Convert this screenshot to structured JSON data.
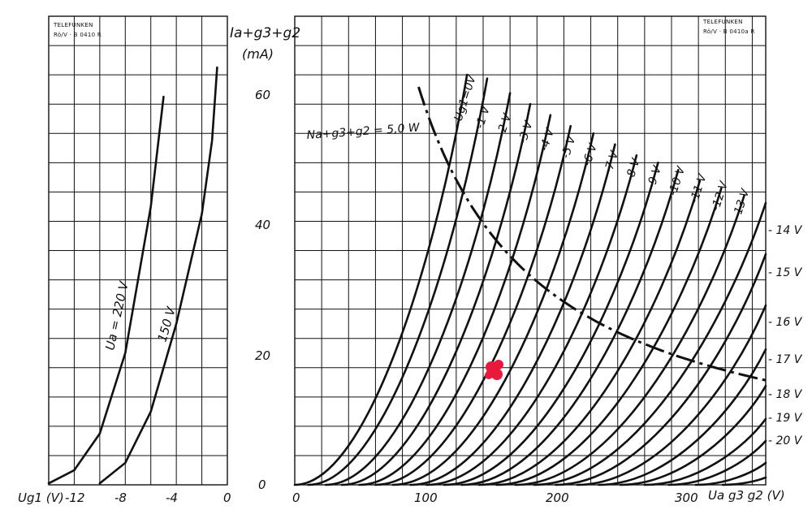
{
  "chart_data": [
    {
      "type": "line",
      "header": [
        "TELEFUNKEN",
        "Rö/V · B 0410 R"
      ],
      "xlabel": "Ug1 (V)",
      "ylabel": "",
      "xlim": [
        -14,
        0
      ],
      "ylim": [
        0,
        64
      ],
      "xticks": [
        "-12",
        "-8",
        "-4",
        "0"
      ],
      "series": [
        {
          "name": "Ua = 220 V",
          "x": [
            -14,
            -12,
            -10,
            -8,
            -7,
            -6,
            -5
          ],
          "y": [
            0.2,
            2,
            7,
            18,
            28,
            38,
            53
          ]
        },
        {
          "name": "150 V",
          "x": [
            -10,
            -8,
            -6,
            -4,
            -2,
            -1.2,
            -0.8
          ],
          "y": [
            0.2,
            3,
            10,
            22,
            37,
            47,
            57
          ]
        }
      ]
    },
    {
      "type": "line",
      "header": [
        "TELEFUNKEN",
        "Rö/V · B 0410a R"
      ],
      "xlabel": "Ua g3 g2 (V)",
      "ylabel": [
        "Ia+g3+g2",
        "(mA)"
      ],
      "xlim": [
        0,
        350
      ],
      "ylim": [
        0,
        64
      ],
      "xticks": [
        "0",
        "100",
        "200",
        "300"
      ],
      "yticks": [
        "0",
        "20",
        "40",
        "60"
      ],
      "power_hyperbola": {
        "label": "Na+g3+g2 = 5,0 W",
        "watts": 5.0
      },
      "top_labels": [
        "Ug1=0V",
        "-1 V",
        "-2 V",
        "-3 V",
        "-4 V",
        "-5 V",
        "-6 V",
        "-7 V",
        "-8 V",
        "-9 V",
        "-10 V",
        "-11 V",
        "-12 V",
        "-13 V"
      ],
      "side_labels": [
        "- 14 V",
        "- 15 V",
        "- 16 V",
        "- 17 V",
        "- 18 V",
        "- 19 V",
        "- 20 V"
      ],
      "series": [
        {
          "ug1": 0,
          "x": [
            0,
            128
          ],
          "y": [
            0,
            56
          ]
        },
        {
          "ug1": -1,
          "x": [
            10,
            143
          ],
          "y": [
            0,
            55.5
          ]
        },
        {
          "ug1": -2,
          "x": [
            23,
            160
          ],
          "y": [
            0,
            53.5
          ]
        },
        {
          "ug1": -3,
          "x": [
            35,
            175
          ],
          "y": [
            0,
            52
          ]
        },
        {
          "ug1": -4,
          "x": [
            48,
            190
          ],
          "y": [
            0,
            50.5
          ]
        },
        {
          "ug1": -5,
          "x": [
            60,
            205
          ],
          "y": [
            0,
            49
          ]
        },
        {
          "ug1": -6,
          "x": [
            73,
            222
          ],
          "y": [
            0,
            48
          ]
        },
        {
          "ug1": -7,
          "x": [
            86,
            238
          ],
          "y": [
            0,
            46.5
          ]
        },
        {
          "ug1": -8,
          "x": [
            98,
            254
          ],
          "y": [
            0,
            45
          ]
        },
        {
          "ug1": -9,
          "x": [
            111,
            270
          ],
          "y": [
            0,
            44
          ]
        },
        {
          "ug1": -10,
          "x": [
            124,
            285
          ],
          "y": [
            0,
            43
          ]
        },
        {
          "ug1": -11,
          "x": [
            137,
            301
          ],
          "y": [
            0,
            41.5
          ]
        },
        {
          "ug1": -12,
          "x": [
            150,
            317
          ],
          "y": [
            0,
            40.5
          ]
        },
        {
          "ug1": -13,
          "x": [
            164,
            334
          ],
          "y": [
            0,
            39.5
          ]
        },
        {
          "ug1": -14,
          "x": [
            178,
            350
          ],
          "y": [
            0,
            38.5
          ]
        },
        {
          "ug1": -15,
          "x": [
            194,
            350
          ],
          "y": [
            0,
            31.5
          ]
        },
        {
          "ug1": -16,
          "x": [
            210,
            350
          ],
          "y": [
            0,
            24.5
          ]
        },
        {
          "ug1": -17,
          "x": [
            226,
            350
          ],
          "y": [
            0,
            18.5
          ]
        },
        {
          "ug1": -18,
          "x": [
            242,
            350
          ],
          "y": [
            0,
            13.5
          ]
        },
        {
          "ug1": -19,
          "x": [
            260,
            350
          ],
          "y": [
            0,
            9
          ]
        },
        {
          "ug1": -20,
          "x": [
            278,
            350
          ],
          "y": [
            0,
            6
          ]
        },
        {
          "ug1": -21,
          "x": [
            298,
            350
          ],
          "y": [
            0,
            3
          ]
        },
        {
          "ug1": -22,
          "x": [
            318,
            350
          ],
          "y": [
            0,
            1
          ]
        }
      ],
      "annotation_color": "#e8193c"
    }
  ]
}
